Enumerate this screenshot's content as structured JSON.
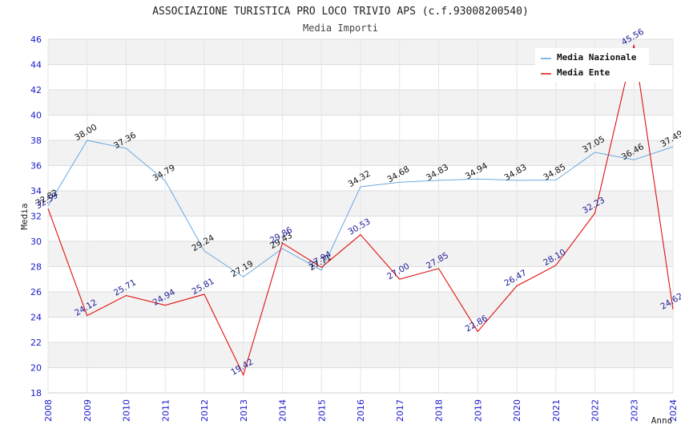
{
  "chart_data": {
    "type": "line",
    "title": "ASSOCIAZIONE TURISTICA PRO LOCO TRIVIO APS (c.f.93008200540)",
    "subtitle": "Media Importi",
    "xlabel": "Anno",
    "ylabel": "Media",
    "ylim": [
      18,
      46
    ],
    "yticks": [
      18,
      20,
      22,
      24,
      26,
      28,
      30,
      32,
      34,
      36,
      38,
      40,
      42,
      44,
      46
    ],
    "grid": true,
    "legend_position": "top-right",
    "categories": [
      "2008",
      "2009",
      "2010",
      "2011",
      "2012",
      "2013",
      "2014",
      "2015",
      "2016",
      "2017",
      "2018",
      "2019",
      "2020",
      "2021",
      "2022",
      "2023",
      "2024"
    ],
    "series": [
      {
        "name": "Media Nazionale",
        "color": "#5aa0e0",
        "label_color": "#111111",
        "values": [
          32.82,
          38.0,
          37.36,
          34.79,
          29.24,
          27.19,
          29.43,
          27.71,
          34.32,
          34.68,
          34.83,
          34.94,
          34.83,
          34.85,
          37.05,
          36.46,
          37.49
        ]
      },
      {
        "name": "Media Ente",
        "color": "#e01010",
        "label_color": "#1a1a99",
        "values": [
          32.59,
          24.12,
          25.71,
          24.94,
          25.81,
          19.42,
          29.86,
          27.94,
          30.53,
          27.0,
          27.85,
          22.86,
          26.47,
          28.1,
          32.23,
          45.56,
          24.62
        ]
      }
    ]
  }
}
